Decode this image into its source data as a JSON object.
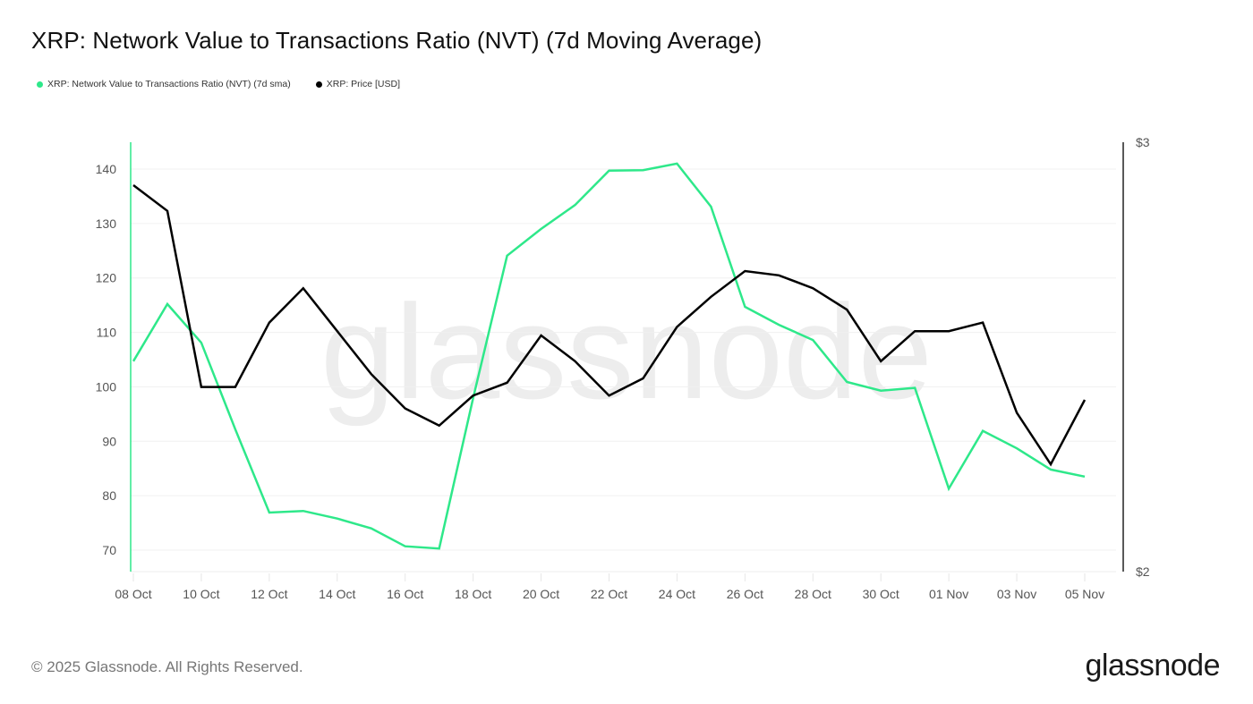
{
  "title": "XRP: Network Value to Transactions Ratio (NVT) (7d Moving Average)",
  "legend": [
    {
      "label": "XRP: Network Value to Transactions Ratio (NVT) (7d sma)",
      "color": "#2ee88a"
    },
    {
      "label": "XRP: Price [USD]",
      "color": "#000000"
    }
  ],
  "watermark": "glassnode",
  "footer": {
    "copyright": "© 2025 Glassnode. All Rights Reserved.",
    "logo": "glassnode"
  },
  "chart_data": {
    "type": "line",
    "title": "XRP: Network Value to Transactions Ratio (NVT) (7d Moving Average)",
    "xlabel": "",
    "ylabel": "",
    "x": [
      "08 Oct",
      "09 Oct",
      "10 Oct",
      "11 Oct",
      "12 Oct",
      "13 Oct",
      "14 Oct",
      "15 Oct",
      "16 Oct",
      "17 Oct",
      "18 Oct",
      "19 Oct",
      "20 Oct",
      "21 Oct",
      "22 Oct",
      "23 Oct",
      "24 Oct",
      "25 Oct",
      "26 Oct",
      "27 Oct",
      "28 Oct",
      "29 Oct",
      "30 Oct",
      "31 Oct",
      "01 Nov",
      "02 Nov",
      "03 Nov",
      "04 Nov",
      "05 Nov"
    ],
    "x_tick_labels": [
      "08 Oct",
      "10 Oct",
      "12 Oct",
      "14 Oct",
      "16 Oct",
      "18 Oct",
      "20 Oct",
      "22 Oct",
      "24 Oct",
      "26 Oct",
      "28 Oct",
      "30 Oct",
      "01 Nov",
      "03 Nov",
      "05 Nov"
    ],
    "series": [
      {
        "name": "XRP: Network Value to Transactions Ratio (NVT) (7d sma)",
        "axis": "left",
        "color": "#2ee88a",
        "values": [
          104.7,
          115.2,
          108.1,
          92.2,
          76.9,
          77.2,
          75.8,
          74.0,
          70.7,
          70.3,
          97.9,
          124.1,
          129.0,
          133.4,
          139.7,
          139.8,
          141.0,
          133.1,
          114.7,
          111.4,
          108.6,
          100.9,
          99.3,
          99.8,
          81.3,
          91.9,
          88.7,
          84.8,
          83.5
        ]
      },
      {
        "name": "XRP: Price [USD]",
        "axis": "right",
        "color": "#000000",
        "values": [
          2.9,
          2.84,
          2.43,
          2.43,
          2.58,
          2.66,
          2.56,
          2.46,
          2.38,
          2.34,
          2.41,
          2.44,
          2.55,
          2.49,
          2.41,
          2.45,
          2.57,
          2.64,
          2.7,
          2.69,
          2.66,
          2.61,
          2.49,
          2.56,
          2.56,
          2.58,
          2.37,
          2.25,
          2.4
        ]
      }
    ],
    "y_left": {
      "ticks": [
        70,
        80,
        90,
        100,
        110,
        120,
        130,
        140
      ],
      "ylim": [
        66,
        145
      ]
    },
    "y_right": {
      "ticks": [
        "$2",
        "$3"
      ],
      "ylim": [
        2,
        3
      ],
      "log_scale": false
    },
    "grid": true,
    "legend_position": "top-left"
  }
}
